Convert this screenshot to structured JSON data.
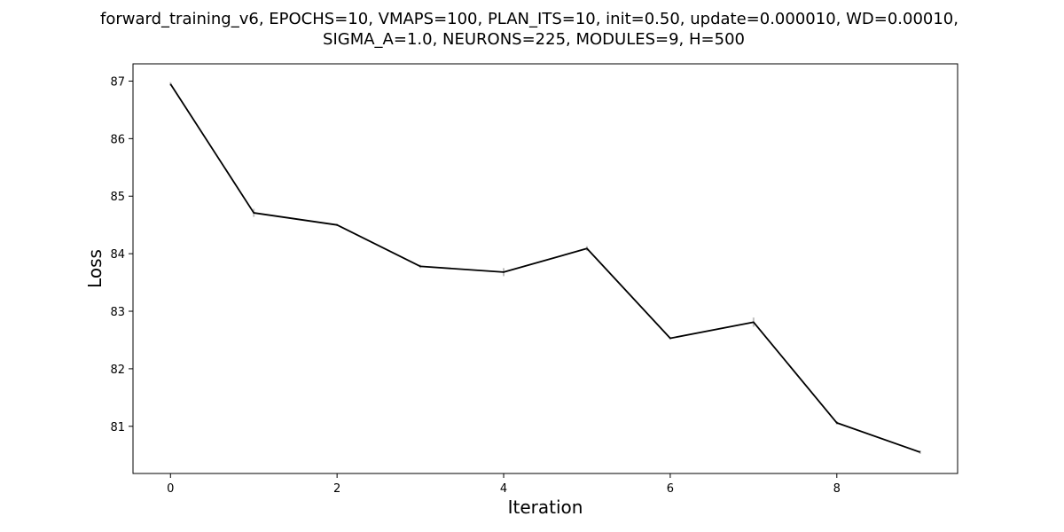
{
  "chart_data": {
    "type": "line",
    "title_lines": [
      "forward_training_v6, EPOCHS=10, VMAPS=100, PLAN_ITS=10, init=0.50, update=0.000010, WD=0.00010,",
      "SIGMA_A=1.0, NEURONS=225, MODULES=9, H=500"
    ],
    "xlabel": "Iteration",
    "ylabel": "Loss",
    "x": [
      0,
      1,
      2,
      3,
      4,
      5,
      6,
      7,
      8,
      9
    ],
    "series": [
      {
        "values": [
          86.95,
          84.71,
          84.5,
          83.78,
          83.68,
          84.09,
          82.53,
          82.81,
          81.06,
          80.55
        ],
        "errors": [
          0.03,
          0.07,
          0.02,
          0.03,
          0.07,
          0.04,
          0.02,
          0.08,
          0.03,
          0.03
        ],
        "color": "#000000",
        "error_color": "#c0c0c0"
      }
    ],
    "xlim": [
      -0.45,
      9.45
    ],
    "ylim": [
      80.18,
      87.3
    ],
    "xticks": [
      0,
      2,
      4,
      6,
      8
    ],
    "yticks": [
      81,
      82,
      83,
      84,
      85,
      86,
      87
    ],
    "grid": false
  }
}
